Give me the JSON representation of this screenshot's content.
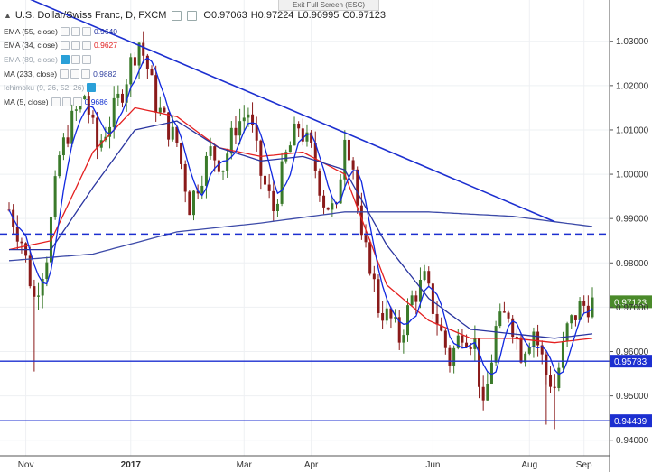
{
  "header": {
    "exit_fullscreen": "Exit Full Screen (ESC)",
    "symbol_title": "U.S. Dollar/Swiss Franc, D, FXCM",
    "open": "O0.97063",
    "high": "H0.97224",
    "low": "L0.96995",
    "close": "C0.97123"
  },
  "indicators": [
    {
      "name": "EMA (55, close)",
      "value": "0.9640",
      "color": "#2030a0",
      "dim": false
    },
    {
      "name": "EMA (34, close)",
      "value": "0.9627",
      "color": "#e02020",
      "dim": false
    },
    {
      "name": "EMA (89, close)",
      "value": "",
      "color": "#9aa3ad",
      "dim": true
    },
    {
      "name": "MA (233, close)",
      "value": "0.9882",
      "color": "#3040a0",
      "dim": false
    },
    {
      "name": "Ichimoku (9, 26, 52, 26)",
      "value": "",
      "color": "#9aa3ad",
      "dim": true
    },
    {
      "name": "MA (5, close)",
      "value": "0.9686",
      "color": "#1030d0",
      "dim": false
    }
  ],
  "colors": {
    "up": "#3a7a2a",
    "down": "#8a1a1a",
    "blue": "#1c2fd0",
    "ema34": "#e42020",
    "ema55": "#2a35a0",
    "ma233": "#3c4aa8",
    "ma5": "#1028e0",
    "current_badge": "#4a8a2a"
  },
  "chart_data": {
    "type": "candlestick",
    "symbol": "U.S. Dollar/Swiss Franc, D, FXCM",
    "x_tick_labels": [
      "Nov",
      "2017",
      "Mar",
      "Apr",
      "Jun",
      "Aug",
      "Sep"
    ],
    "y_tick_labels": [
      "1.03000",
      "1.02000",
      "1.01000",
      "1.00000",
      "0.99000",
      "0.98000",
      "0.97000",
      "0.96000",
      "0.95000",
      "0.94000"
    ],
    "ylim": [
      0.9375,
      1.0385
    ],
    "current_price": 0.97123,
    "current_price_label": "0.97123",
    "support_levels": [
      {
        "value": 0.95783,
        "label": "0.95783",
        "style": "solid"
      },
      {
        "value": 0.94439,
        "label": "0.94439",
        "style": "solid"
      },
      {
        "value": 0.9865,
        "label": "",
        "style": "dashed"
      }
    ],
    "trendline": {
      "from": [
        0,
        1.0415
      ],
      "to": [
        130,
        0.9893
      ]
    },
    "n_bars": 140,
    "close_path": [
      [
        0,
        0.992
      ],
      [
        3,
        0.985
      ],
      [
        6,
        0.972
      ],
      [
        9,
        0.982
      ],
      [
        12,
        1.004
      ],
      [
        15,
        1.012
      ],
      [
        18,
        1.018
      ],
      [
        21,
        1.006
      ],
      [
        24,
        1.012
      ],
      [
        27,
        1.019
      ],
      [
        29,
        1.025
      ],
      [
        31,
        1.03
      ],
      [
        33,
        1.024
      ],
      [
        35,
        1.016
      ],
      [
        37,
        1.012
      ],
      [
        40,
        1.007
      ],
      [
        43,
        0.993
      ],
      [
        45,
        0.998
      ],
      [
        48,
        1.005
      ],
      [
        51,
        1.002
      ],
      [
        54,
        1.011
      ],
      [
        57,
        1.014
      ],
      [
        60,
        1.0
      ],
      [
        63,
        0.992
      ],
      [
        66,
        1.004
      ],
      [
        69,
        1.011
      ],
      [
        72,
        1.005
      ],
      [
        75,
        0.994
      ],
      [
        78,
        0.991
      ],
      [
        80,
        1.01
      ],
      [
        82,
        1.002
      ],
      [
        84,
        0.984
      ],
      [
        86,
        0.98
      ],
      [
        88,
        0.97
      ],
      [
        91,
        0.967
      ],
      [
        93,
        0.963
      ],
      [
        96,
        0.972
      ],
      [
        99,
        0.976
      ],
      [
        102,
        0.967
      ],
      [
        105,
        0.958
      ],
      [
        108,
        0.965
      ],
      [
        111,
        0.962
      ],
      [
        113,
        0.946
      ],
      [
        116,
        0.965
      ],
      [
        119,
        0.969
      ],
      [
        122,
        0.96
      ],
      [
        125,
        0.965
      ],
      [
        128,
        0.955
      ],
      [
        130,
        0.952
      ],
      [
        133,
        0.965
      ],
      [
        136,
        0.97
      ],
      [
        139,
        0.971
      ]
    ],
    "series": [
      {
        "name": "EMA (34, close)",
        "values_at": [
          [
            0,
            0.983
          ],
          [
            10,
            0.985
          ],
          [
            20,
            1.005
          ],
          [
            30,
            1.015
          ],
          [
            40,
            1.013
          ],
          [
            50,
            1.006
          ],
          [
            60,
            1.004
          ],
          [
            70,
            1.005
          ],
          [
            80,
            1.0
          ],
          [
            90,
            0.975
          ],
          [
            100,
            0.967
          ],
          [
            110,
            0.963
          ],
          [
            120,
            0.963
          ],
          [
            130,
            0.962
          ],
          [
            139,
            0.963
          ]
        ]
      },
      {
        "name": "EMA (55, close)",
        "values_at": [
          [
            0,
            0.983
          ],
          [
            10,
            0.983
          ],
          [
            20,
            0.997
          ],
          [
            30,
            1.01
          ],
          [
            40,
            1.012
          ],
          [
            50,
            1.006
          ],
          [
            60,
            1.003
          ],
          [
            70,
            1.004
          ],
          [
            80,
            1.001
          ],
          [
            90,
            0.984
          ],
          [
            100,
            0.972
          ],
          [
            110,
            0.965
          ],
          [
            120,
            0.964
          ],
          [
            130,
            0.963
          ],
          [
            139,
            0.964
          ]
        ]
      },
      {
        "name": "MA (233, close)",
        "values_at": [
          [
            0,
            0.9805
          ],
          [
            20,
            0.982
          ],
          [
            40,
            0.987
          ],
          [
            60,
            0.989
          ],
          [
            80,
            0.9915
          ],
          [
            100,
            0.9915
          ],
          [
            120,
            0.9905
          ],
          [
            139,
            0.9882
          ]
        ]
      }
    ]
  }
}
